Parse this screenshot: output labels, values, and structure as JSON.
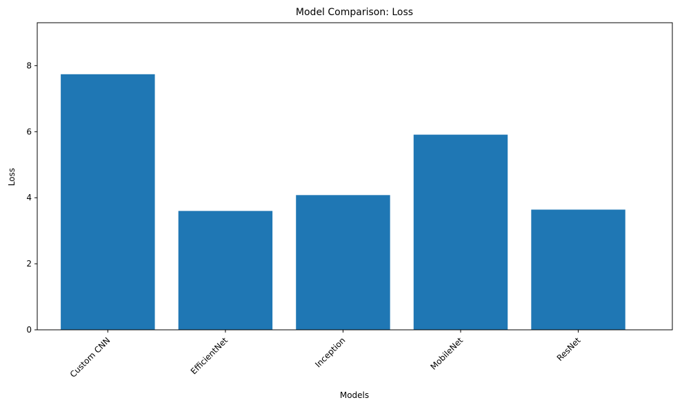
{
  "chart_data": {
    "type": "bar",
    "title": "Model Comparison: Loss",
    "xlabel": "Models",
    "ylabel": "Loss",
    "categories": [
      "Custom CNN",
      "EfficientNet",
      "Inception",
      "MobileNet",
      "ResNet"
    ],
    "values": [
      7.74,
      3.6,
      4.08,
      5.91,
      3.64
    ],
    "ylim": [
      0,
      9.3
    ],
    "yticks": [
      "0",
      "2",
      "4",
      "6",
      "8"
    ],
    "bar_color": "#1f77b4",
    "grid": false,
    "legend": "none"
  }
}
